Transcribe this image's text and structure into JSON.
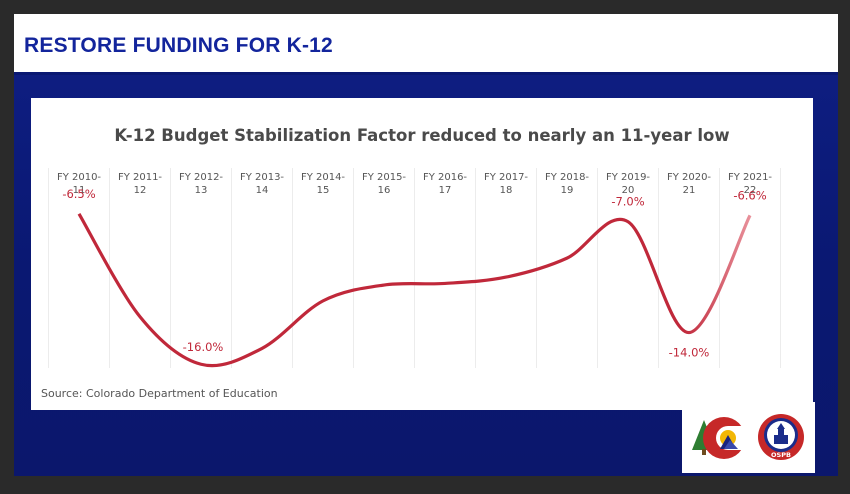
{
  "slide": {
    "title": "RESTORE FUNDING FOR K-12"
  },
  "chart_data": {
    "type": "line",
    "title": "K-12 Budget Stabilization Factor reduced to nearly an 11-year low",
    "categories": [
      [
        "FY 2010-",
        "11"
      ],
      [
        "FY 2011-",
        "12"
      ],
      [
        "FY 2012-",
        "13"
      ],
      [
        "FY 2013-",
        "14"
      ],
      [
        "FY 2014-",
        "15"
      ],
      [
        "FY 2015-",
        "16"
      ],
      [
        "FY 2016-",
        "17"
      ],
      [
        "FY 2017-",
        "18"
      ],
      [
        "FY 2018-",
        "19"
      ],
      [
        "FY 2019-",
        "20"
      ],
      [
        "FY 2020-",
        "21"
      ],
      [
        "FY 2021-",
        "22"
      ]
    ],
    "values": [
      -6.5,
      -13.0,
      -16.0,
      -15.0,
      -12.0,
      -11.0,
      -10.9,
      -10.5,
      -9.3,
      -7.0,
      -14.0,
      -6.6
    ],
    "ylim": [
      -17.5,
      -5.0
    ],
    "data_labels": [
      {
        "index": 0,
        "text": "-6.5%"
      },
      {
        "index": 2,
        "text": "-16.0%"
      },
      {
        "index": 9,
        "text": "-7.0%"
      },
      {
        "index": 10,
        "text": "-14.0%"
      },
      {
        "index": 11,
        "text": "-6.6%"
      }
    ],
    "line_color": "#c0283a",
    "source": "Source: Colorado Department of Education"
  },
  "logos": {
    "left": "colorado-c-logo",
    "right": "ospb-seal",
    "ospb_text": "OSPB"
  }
}
